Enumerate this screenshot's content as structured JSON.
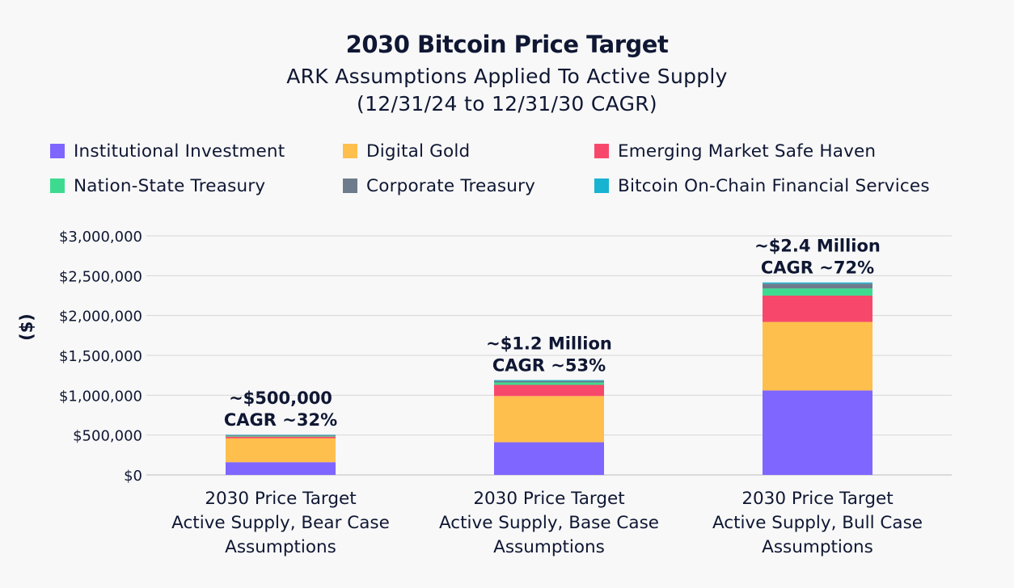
{
  "chart_data": {
    "type": "bar",
    "stacked": true,
    "title": "2030 Bitcoin Price Target",
    "subtitle_lines": [
      "ARK Assumptions Applied To Active Supply",
      "(12/31/24 to 12/31/30 CAGR)"
    ],
    "ylabel": "($)",
    "ylim": [
      0,
      3000000
    ],
    "yticks": [
      0,
      500000,
      1000000,
      1500000,
      2000000,
      2500000,
      3000000
    ],
    "ytick_labels": [
      "$0",
      "$500,000",
      "$1,000,000",
      "$1,500,000",
      "$2,000,000",
      "$2,500,000",
      "$3,000,000"
    ],
    "grid": true,
    "legend_position": "top",
    "categories": [
      [
        "2030 Price Target",
        "Active Supply, Bear Case",
        "Assumptions"
      ],
      [
        "2030 Price Target",
        "Active Supply, Base Case",
        "Assumptions"
      ],
      [
        "2030 Price Target",
        "Active Supply, Bull Case",
        "Assumptions"
      ]
    ],
    "series": [
      {
        "name": "Institutional Investment",
        "color": "#7f66ff",
        "values": [
          160000,
          410000,
          1060000
        ]
      },
      {
        "name": "Digital Gold",
        "color": "#ffbf4d",
        "values": [
          300000,
          580000,
          860000
        ]
      },
      {
        "name": "Emerging Market Safe Haven",
        "color": "#f7486b",
        "values": [
          20000,
          140000,
          330000
        ]
      },
      {
        "name": "Nation-State Treasury",
        "color": "#3ddb8f",
        "values": [
          10000,
          30000,
          90000
        ]
      },
      {
        "name": "Corporate Treasury",
        "color": "#6e7b8c",
        "values": [
          10000,
          20000,
          60000
        ]
      },
      {
        "name": "Bitcoin On-Chain Financial Services",
        "color": "#17b3d1",
        "values": [
          5000,
          10000,
          15000
        ]
      }
    ],
    "bar_annotations": [
      [
        "~$500,000",
        "CAGR ~32%"
      ],
      [
        "~$1.2 Million",
        "CAGR ~53%"
      ],
      [
        "~$2.4 Million",
        "CAGR ~72%"
      ]
    ]
  }
}
